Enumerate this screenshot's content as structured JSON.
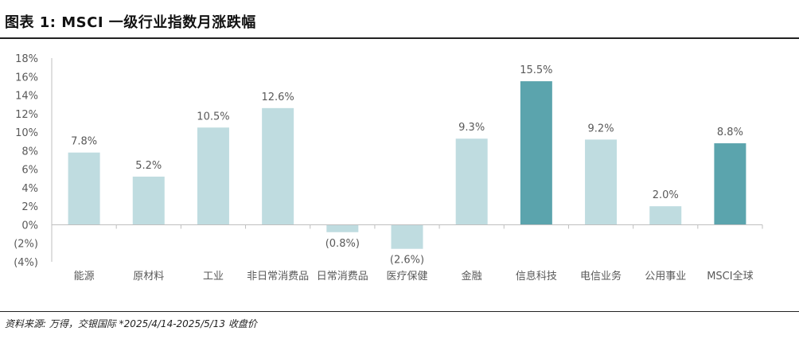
{
  "title": "图表 1: MSCI 一级行业指数月涨跌幅",
  "source": "资料来源: 万得，交银国际   *2025/4/14-2025/5/13 收盘价",
  "chart_data": {
    "type": "bar",
    "categories": [
      "能源",
      "原材料",
      "工业",
      "非日常消费品",
      "日常消费品",
      "医疗保健",
      "金融",
      "信息科技",
      "电信业务",
      "公用事业",
      "MSCI全球"
    ],
    "values": [
      7.8,
      5.2,
      10.5,
      12.6,
      -0.8,
      -2.6,
      9.3,
      15.5,
      9.2,
      2.0,
      8.8
    ],
    "data_labels": [
      "7.8%",
      "5.2%",
      "10.5%",
      "12.6%",
      "(0.8%)",
      "(2.6%)",
      "9.3%",
      "15.5%",
      "9.2%",
      "2.0%",
      "8.8%"
    ],
    "ylim": [
      -4,
      18
    ],
    "yticks": [
      -4,
      -2,
      0,
      2,
      4,
      6,
      8,
      10,
      12,
      14,
      16,
      18
    ],
    "ytick_labels": [
      "(4%)",
      "(2%)",
      "0%",
      "2%",
      "4%",
      "6%",
      "8%",
      "10%",
      "12%",
      "14%",
      "16%",
      "18%"
    ],
    "highlight": [
      7,
      10
    ],
    "colors": {
      "bar": "#bfdce0",
      "highlight": "#5ba4ad",
      "axis": "#bfbfbf",
      "text": "#595959"
    },
    "grid": false,
    "xlabel": "",
    "ylabel": ""
  }
}
